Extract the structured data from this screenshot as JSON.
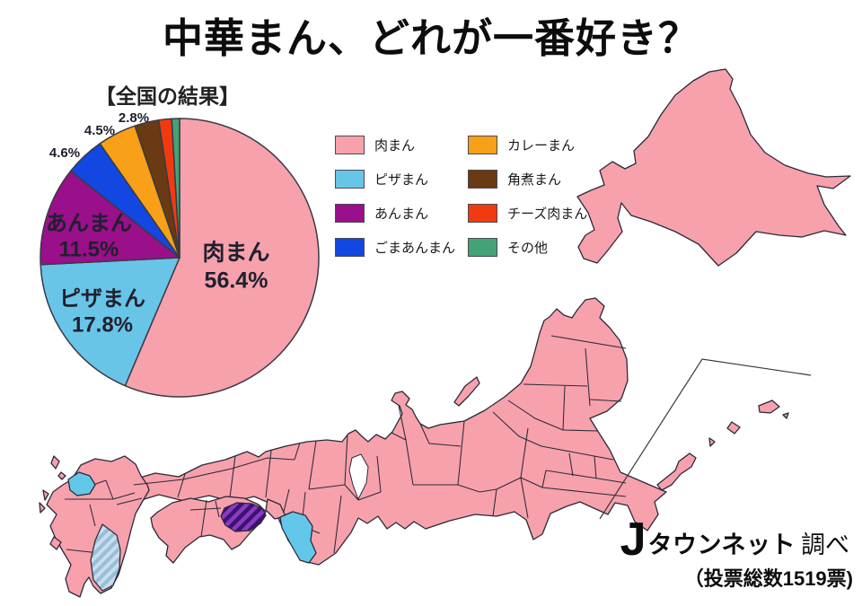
{
  "title": "中華まん、どれが一番好き？",
  "chart_data": {
    "type": "pie",
    "title": "【全国の結果】",
    "unit": "%",
    "direction": "clockwise",
    "start_angle_deg": 0,
    "legend_position": "right-of-chart",
    "legend_columns": 2,
    "slices": [
      {
        "label": "肉まん",
        "value": 56.4,
        "color": "#F7A1AC",
        "value_label": "56.4%",
        "label_visibility": "inside"
      },
      {
        "label": "ピザまん",
        "value": 17.8,
        "color": "#68C5E8",
        "value_label": "17.8%",
        "label_visibility": "inside"
      },
      {
        "label": "あんまん",
        "value": 11.5,
        "color": "#9A0F8A",
        "value_label": "11.5%",
        "label_visibility": "inside"
      },
      {
        "label": "ごまあんまん",
        "value": 4.6,
        "color": "#1247E2",
        "value_label": "4.6%",
        "label_visibility": "outside"
      },
      {
        "label": "カレーまん",
        "value": 4.5,
        "color": "#F7A018",
        "value_label": "4.5%",
        "label_visibility": "outside"
      },
      {
        "label": "角煮まん",
        "value": 2.8,
        "color": "#6A3A12",
        "value_label": "2.8%",
        "label_visibility": "outside"
      },
      {
        "label": "チーズ肉まん",
        "value": 1.5,
        "color": "#F23A10",
        "label_visibility": "none"
      },
      {
        "label": "その他",
        "value": 0.9,
        "color": "#43A376",
        "label_visibility": "none"
      }
    ]
  },
  "map": {
    "base_color": "#F7A1AC",
    "highlight_color": "#63C7E9",
    "border_color": "#2a2a38",
    "hatch_purple": {
      "base": "#8B3BC0",
      "stripe": "#3C1272"
    },
    "hatch_blue": {
      "base": "#98BDD8",
      "stripe": "#C9DEEC"
    }
  },
  "source": {
    "logo_j": "J",
    "logo_brand": "タウンネット",
    "logo_suffix": "調べ",
    "votes_note": "（投票総数1519票)"
  }
}
